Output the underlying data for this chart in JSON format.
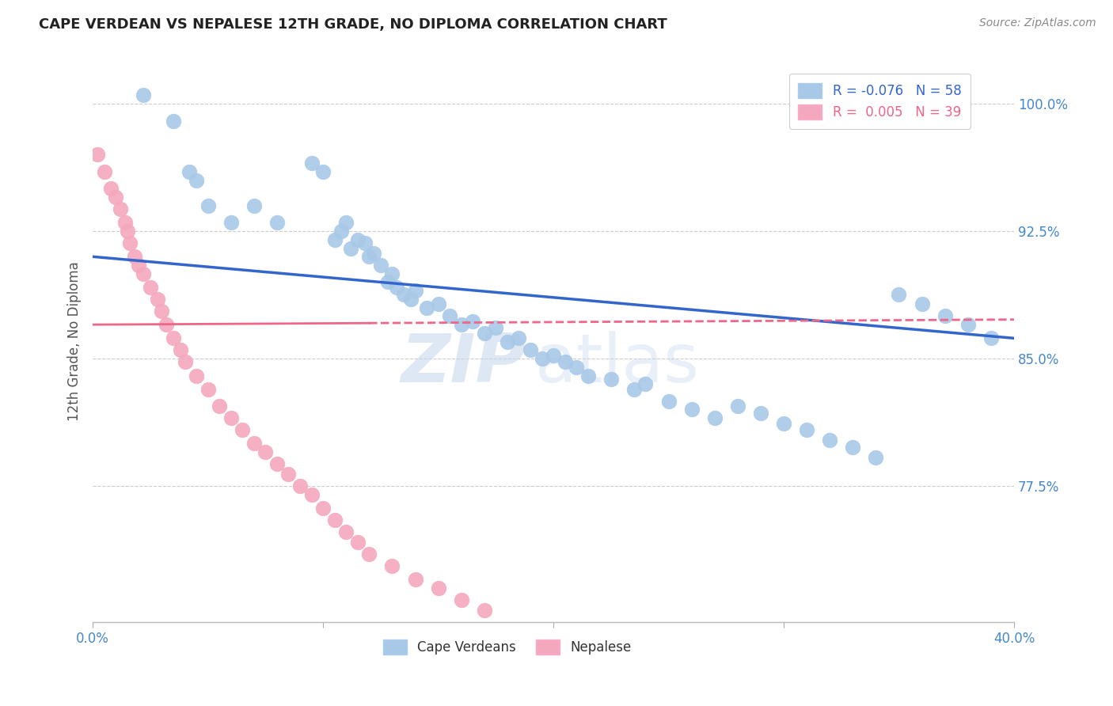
{
  "title": "CAPE VERDEAN VS NEPALESE 12TH GRADE, NO DIPLOMA CORRELATION CHART",
  "source": "Source: ZipAtlas.com",
  "ylabel": "12th Grade, No Diploma",
  "xmin": 0.0,
  "xmax": 0.4,
  "ymin": 0.695,
  "ymax": 1.025,
  "ytick_labels": [
    "100.0%",
    "92.5%",
    "85.0%",
    "77.5%"
  ],
  "ytick_values": [
    1.0,
    0.925,
    0.85,
    0.775
  ],
  "blue_R": -0.076,
  "blue_N": 58,
  "pink_R": 0.005,
  "pink_N": 39,
  "legend_blue_label": "R = -0.076   N = 58",
  "legend_pink_label": "R =  0.005   N = 39",
  "legend_cape_label": "Cape Verdeans",
  "legend_nep_label": "Nepalese",
  "blue_color": "#a8c8e8",
  "pink_color": "#f4a8be",
  "blue_line_color": "#3366cc",
  "pink_line_color": "#ee6688",
  "watermark_zip": "ZIP",
  "watermark_atlas": "atlas",
  "blue_x": [
    0.022,
    0.035,
    0.042,
    0.045,
    0.05,
    0.06,
    0.07,
    0.08,
    0.095,
    0.1,
    0.105,
    0.108,
    0.11,
    0.112,
    0.115,
    0.118,
    0.12,
    0.122,
    0.125,
    0.128,
    0.13,
    0.132,
    0.135,
    0.138,
    0.14,
    0.145,
    0.15,
    0.155,
    0.16,
    0.165,
    0.17,
    0.175,
    0.18,
    0.185,
    0.19,
    0.195,
    0.2,
    0.205,
    0.21,
    0.215,
    0.225,
    0.235,
    0.24,
    0.25,
    0.26,
    0.27,
    0.28,
    0.29,
    0.3,
    0.31,
    0.32,
    0.33,
    0.34,
    0.35,
    0.36,
    0.37,
    0.38,
    0.39
  ],
  "blue_y": [
    1.005,
    0.99,
    0.96,
    0.955,
    0.94,
    0.93,
    0.94,
    0.93,
    0.965,
    0.96,
    0.92,
    0.925,
    0.93,
    0.915,
    0.92,
    0.918,
    0.91,
    0.912,
    0.905,
    0.895,
    0.9,
    0.892,
    0.888,
    0.885,
    0.89,
    0.88,
    0.882,
    0.875,
    0.87,
    0.872,
    0.865,
    0.868,
    0.86,
    0.862,
    0.855,
    0.85,
    0.852,
    0.848,
    0.845,
    0.84,
    0.838,
    0.832,
    0.835,
    0.825,
    0.82,
    0.815,
    0.822,
    0.818,
    0.812,
    0.808,
    0.802,
    0.798,
    0.792,
    0.888,
    0.882,
    0.875,
    0.87,
    0.862
  ],
  "pink_x": [
    0.002,
    0.005,
    0.008,
    0.01,
    0.012,
    0.014,
    0.015,
    0.016,
    0.018,
    0.02,
    0.022,
    0.025,
    0.028,
    0.03,
    0.032,
    0.035,
    0.038,
    0.04,
    0.045,
    0.05,
    0.055,
    0.06,
    0.065,
    0.07,
    0.075,
    0.08,
    0.085,
    0.09,
    0.095,
    0.1,
    0.105,
    0.11,
    0.115,
    0.12,
    0.13,
    0.14,
    0.15,
    0.16,
    0.17
  ],
  "pink_y": [
    0.97,
    0.96,
    0.95,
    0.945,
    0.938,
    0.93,
    0.925,
    0.918,
    0.91,
    0.905,
    0.9,
    0.892,
    0.885,
    0.878,
    0.87,
    0.862,
    0.855,
    0.848,
    0.84,
    0.832,
    0.822,
    0.815,
    0.808,
    0.8,
    0.795,
    0.788,
    0.782,
    0.775,
    0.77,
    0.762,
    0.755,
    0.748,
    0.742,
    0.735,
    0.728,
    0.72,
    0.715,
    0.708,
    0.702
  ],
  "blue_trend_x": [
    0.0,
    0.4
  ],
  "blue_trend_y": [
    0.91,
    0.862
  ],
  "pink_trend_x": [
    0.0,
    0.4
  ],
  "pink_trend_y": [
    0.87,
    0.873
  ]
}
